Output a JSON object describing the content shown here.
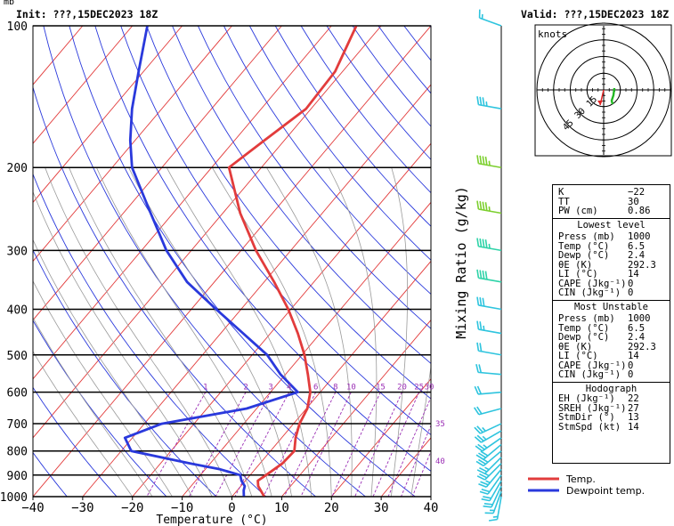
{
  "header": {
    "init_label": "Init: ???,15DEC2023 18Z",
    "valid_label": "Valid: ???,15DEC2023 18Z",
    "unit_mb": "mb"
  },
  "chart_data": {
    "type": "line",
    "title": "",
    "xlabel": "Temperature (°C)",
    "ylabel": "",
    "right_label": "Mixing Ratio (g/kg)",
    "xlim": [
      -40,
      40
    ],
    "ylim_mb": [
      1000,
      100
    ],
    "x_ticks": [
      -40,
      -30,
      -20,
      -10,
      0,
      10,
      20,
      30,
      40
    ],
    "x_tick_labels": [
      "−40",
      "−30",
      "−20",
      "−10",
      "0",
      "10",
      "20",
      "30",
      "40"
    ],
    "pressure_levels": [
      100,
      200,
      300,
      400,
      500,
      600,
      700,
      800,
      900,
      1000
    ],
    "mixing_ratio_labels": [
      "1",
      "2",
      "3",
      "4",
      "6",
      "8",
      "10",
      "15",
      "20",
      "25",
      "30",
      "35",
      "40"
    ],
    "grid": true,
    "legend_position": "bottom-right",
    "series": [
      {
        "name": "Temp.",
        "color": "#e23c3c",
        "points": [
          [
            1000,
            6.5
          ],
          [
            950,
            3.5
          ],
          [
            925,
            2.5
          ],
          [
            900,
            3.2
          ],
          [
            850,
            4.5
          ],
          [
            800,
            4.8
          ],
          [
            750,
            2.8
          ],
          [
            700,
            1.2
          ],
          [
            650,
            0.2
          ],
          [
            600,
            -2.0
          ],
          [
            550,
            -5.5
          ],
          [
            500,
            -9.5
          ],
          [
            450,
            -14.5
          ],
          [
            400,
            -20.5
          ],
          [
            350,
            -28.0
          ],
          [
            300,
            -37.0
          ],
          [
            250,
            -46.5
          ],
          [
            200,
            -56.5
          ],
          [
            175,
            -54.0
          ],
          [
            150,
            -51.0
          ],
          [
            125,
            -51.5
          ],
          [
            100,
            -55.0
          ]
        ]
      },
      {
        "name": "Dewpoint temp.",
        "color": "#2a39dc",
        "points": [
          [
            1000,
            2.4
          ],
          [
            970,
            1.3
          ],
          [
            950,
            0.8
          ],
          [
            925,
            -0.8
          ],
          [
            900,
            -2.0
          ],
          [
            875,
            -7.0
          ],
          [
            850,
            -14.0
          ],
          [
            800,
            -28.0
          ],
          [
            750,
            -31.5
          ],
          [
            700,
            -26.5
          ],
          [
            650,
            -12.0
          ],
          [
            600,
            -4.5
          ],
          [
            550,
            -11.0
          ],
          [
            500,
            -17.0
          ],
          [
            450,
            -25.5
          ],
          [
            400,
            -35.0
          ],
          [
            350,
            -45.5
          ],
          [
            300,
            -55.0
          ],
          [
            250,
            -64.5
          ],
          [
            200,
            -76.0
          ],
          [
            175,
            -81.0
          ],
          [
            150,
            -86.0
          ],
          [
            125,
            -91.0
          ],
          [
            100,
            -97.0
          ]
        ]
      }
    ],
    "wind_barbs_kt": [
      {
        "p": 1000,
        "dir": 190,
        "spd": 14
      },
      {
        "p": 975,
        "dir": 200,
        "spd": 16
      },
      {
        "p": 950,
        "dir": 205,
        "spd": 18
      },
      {
        "p": 925,
        "dir": 210,
        "spd": 20
      },
      {
        "p": 900,
        "dir": 215,
        "spd": 22
      },
      {
        "p": 875,
        "dir": 220,
        "spd": 24
      },
      {
        "p": 850,
        "dir": 225,
        "spd": 25
      },
      {
        "p": 825,
        "dir": 225,
        "spd": 27
      },
      {
        "p": 800,
        "dir": 230,
        "spd": 28
      },
      {
        "p": 775,
        "dir": 230,
        "spd": 28
      },
      {
        "p": 750,
        "dir": 235,
        "spd": 27
      },
      {
        "p": 725,
        "dir": 240,
        "spd": 26
      },
      {
        "p": 700,
        "dir": 245,
        "spd": 25
      },
      {
        "p": 650,
        "dir": 255,
        "spd": 22
      },
      {
        "p": 600,
        "dir": 265,
        "spd": 20
      },
      {
        "p": 550,
        "dir": 275,
        "spd": 18
      },
      {
        "p": 500,
        "dir": 280,
        "spd": 20
      },
      {
        "p": 450,
        "dir": 280,
        "spd": 25
      },
      {
        "p": 400,
        "dir": 280,
        "spd": 30
      },
      {
        "p": 350,
        "dir": 280,
        "spd": 40
      },
      {
        "p": 300,
        "dir": 280,
        "spd": 45
      },
      {
        "p": 250,
        "dir": 280,
        "spd": 45
      },
      {
        "p": 200,
        "dir": 280,
        "spd": 45
      },
      {
        "p": 150,
        "dir": 280,
        "spd": 35
      },
      {
        "p": 100,
        "dir": 290,
        "spd": 15
      }
    ],
    "hodograph": {
      "unit_label": "knots",
      "ring_labels": [
        "15",
        "30",
        "45"
      ],
      "ring_speeds_kt": [
        15,
        30,
        45,
        60
      ],
      "storm_motion": {
        "dir": 13,
        "spd": 14
      }
    }
  },
  "indices": {
    "top": [
      {
        "k": "K",
        "v": "−22"
      },
      {
        "k": "TT",
        "v": "30"
      },
      {
        "k": "PW (cm)",
        "v": "0.86"
      }
    ],
    "lowest_title": "Lowest level",
    "lowest": [
      {
        "k": "Press (mb)",
        "v": "1000"
      },
      {
        "k": "Temp (°C)",
        "v": "6.5"
      },
      {
        "k": "Dewp (°C)",
        "v": "2.4"
      },
      {
        "k": "θE (K)",
        "v": "292.3"
      },
      {
        "k": "LI (°C)",
        "v": "14"
      },
      {
        "k": "CAPE (Jkg⁻¹)",
        "v": "0"
      },
      {
        "k": "CIN (Jkg⁻¹)",
        "v": "0"
      }
    ],
    "unstable_title": "Most Unstable",
    "unstable": [
      {
        "k": "Press (mb)",
        "v": "1000"
      },
      {
        "k": "Temp (°C)",
        "v": "6.5"
      },
      {
        "k": "Dewp (°C)",
        "v": "2.4"
      },
      {
        "k": "θE (K)",
        "v": "292.3"
      },
      {
        "k": "LI (°C)",
        "v": "14"
      },
      {
        "k": "CAPE (Jkg⁻¹)",
        "v": "0"
      },
      {
        "k": "CIN (Jkg⁻¹)",
        "v": "0"
      }
    ],
    "hodo_title": "Hodograph",
    "hodo": [
      {
        "k": "EH (Jkg⁻¹)",
        "v": "22"
      },
      {
        "k": "SREH (Jkg⁻¹)",
        "v": "27"
      },
      {
        "k": "StmDir (°)",
        "v": "13"
      },
      {
        "k": "StmSpd (kt)",
        "v": "14"
      }
    ]
  },
  "legend": {
    "temp_label": "Temp.",
    "dew_label": "Dewpoint temp.",
    "temp_color": "#e23c3c",
    "dew_color": "#2a39dc"
  },
  "colors": {
    "isotherm": "#e23c3c",
    "dry_adiabat": "#2a39dc",
    "moist_adiabat": "#9a9a9a",
    "mixing_ratio": "#9b2fb5",
    "barb": "#2ec4de",
    "hodo_green": "#22b822",
    "hodo_red": "#e02424"
  }
}
